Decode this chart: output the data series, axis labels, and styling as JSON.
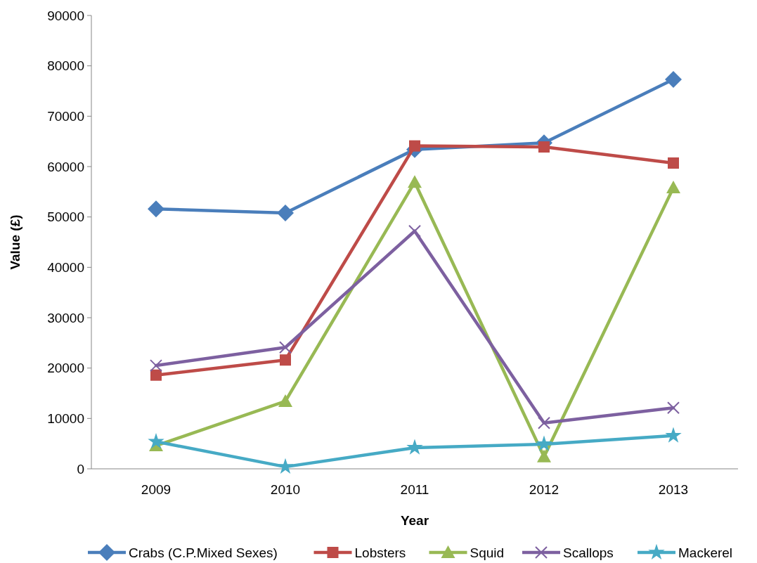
{
  "chart_data": {
    "type": "line",
    "xlabel": "Year",
    "ylabel": "Value (£)",
    "categories": [
      "2009",
      "2010",
      "2011",
      "2012",
      "2013"
    ],
    "ylim": [
      0,
      90000
    ],
    "yticks": [
      0,
      10000,
      20000,
      30000,
      40000,
      50000,
      60000,
      70000,
      80000,
      90000
    ],
    "legend": "bottom",
    "series": [
      {
        "name": "Crabs (C.P.Mixed Sexes)",
        "color": "#4a7ebb",
        "marker": "diamond",
        "values": [
          51600,
          50800,
          63400,
          64700,
          77300
        ]
      },
      {
        "name": "Lobsters",
        "color": "#be4b48",
        "marker": "square",
        "values": [
          18600,
          21600,
          64100,
          63900,
          60700
        ]
      },
      {
        "name": "Squid",
        "color": "#98b954",
        "marker": "triangle",
        "values": [
          4600,
          13400,
          56900,
          2400,
          55800
        ]
      },
      {
        "name": "Scallops",
        "color": "#7d60a0",
        "marker": "cross",
        "values": [
          20500,
          24100,
          47200,
          9100,
          12100
        ]
      },
      {
        "name": "Mackerel",
        "color": "#46aac5",
        "marker": "star",
        "values": [
          5400,
          400,
          4200,
          4900,
          6600
        ]
      }
    ]
  }
}
